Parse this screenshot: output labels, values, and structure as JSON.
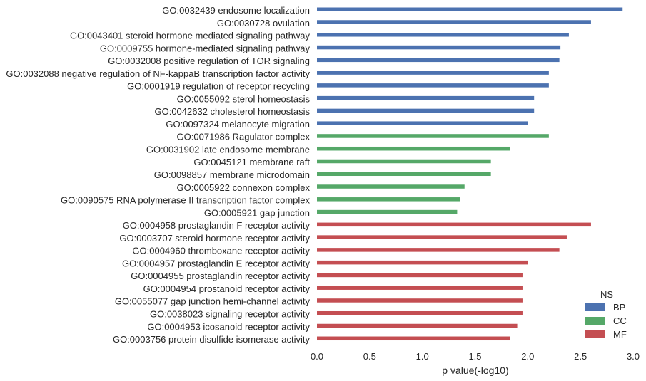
{
  "chart_data": {
    "type": "bar",
    "orientation": "horizontal",
    "xlabel": "p value(-log10)",
    "xlim": [
      0,
      3.0
    ],
    "xticks": [
      "0.0",
      "0.5",
      "1.0",
      "1.5",
      "2.0",
      "2.5",
      "3.0"
    ],
    "grid": false,
    "legend": {
      "title": "NS",
      "placement": "bottom-right",
      "entries": [
        {
          "name": "BP",
          "color": "#4c72b0"
        },
        {
          "name": "CC",
          "color": "#55a868"
        },
        {
          "name": "MF",
          "color": "#c44e52"
        }
      ]
    },
    "categories": [
      {
        "label": "GO:0032439 endosome localization",
        "value": 2.9,
        "ns": "BP"
      },
      {
        "label": "GO:0030728 ovulation",
        "value": 2.6,
        "ns": "BP"
      },
      {
        "label": "GO:0043401 steroid hormone mediated signaling pathway",
        "value": 2.39,
        "ns": "BP"
      },
      {
        "label": "GO:0009755 hormone-mediated signaling pathway",
        "value": 2.31,
        "ns": "BP"
      },
      {
        "label": "GO:0032008 positive regulation of TOR signaling",
        "value": 2.3,
        "ns": "BP"
      },
      {
        "label": "GO:0032088 negative regulation of NF-kappaB transcription factor activity",
        "value": 2.2,
        "ns": "BP"
      },
      {
        "label": "GO:0001919 regulation of receptor recycling",
        "value": 2.2,
        "ns": "BP"
      },
      {
        "label": "GO:0055092 sterol homeostasis",
        "value": 2.06,
        "ns": "BP"
      },
      {
        "label": "GO:0042632 cholesterol homeostasis",
        "value": 2.06,
        "ns": "BP"
      },
      {
        "label": "GO:0097324 melanocyte migration",
        "value": 2.0,
        "ns": "BP"
      },
      {
        "label": "GO:0071986 Ragulator complex",
        "value": 2.2,
        "ns": "CC"
      },
      {
        "label": "GO:0031902 late endosome membrane",
        "value": 1.83,
        "ns": "CC"
      },
      {
        "label": "GO:0045121 membrane raft",
        "value": 1.65,
        "ns": "CC"
      },
      {
        "label": "GO:0098857 membrane microdomain",
        "value": 1.65,
        "ns": "CC"
      },
      {
        "label": "GO:0005922 connexon complex",
        "value": 1.4,
        "ns": "CC"
      },
      {
        "label": "GO:0090575 RNA polymerase II transcription factor complex",
        "value": 1.36,
        "ns": "CC"
      },
      {
        "label": "GO:0005921 gap junction",
        "value": 1.33,
        "ns": "CC"
      },
      {
        "label": "GO:0004958 prostaglandin F receptor activity",
        "value": 2.6,
        "ns": "MF"
      },
      {
        "label": "GO:0003707 steroid hormone receptor activity",
        "value": 2.37,
        "ns": "MF"
      },
      {
        "label": "GO:0004960 thromboxane receptor activity",
        "value": 2.3,
        "ns": "MF"
      },
      {
        "label": "GO:0004957 prostaglandin E receptor activity",
        "value": 2.0,
        "ns": "MF"
      },
      {
        "label": "GO:0004955 prostaglandin receptor activity",
        "value": 1.95,
        "ns": "MF"
      },
      {
        "label": "GO:0004954 prostanoid receptor activity",
        "value": 1.95,
        "ns": "MF"
      },
      {
        "label": "GO:0055077 gap junction hemi-channel activity",
        "value": 1.95,
        "ns": "MF"
      },
      {
        "label": "GO:0038023 signaling receptor activity",
        "value": 1.95,
        "ns": "MF"
      },
      {
        "label": "GO:0004953 icosanoid receptor activity",
        "value": 1.9,
        "ns": "MF"
      },
      {
        "label": "GO:0003756 protein disulfide isomerase activity",
        "value": 1.83,
        "ns": "MF"
      }
    ]
  }
}
